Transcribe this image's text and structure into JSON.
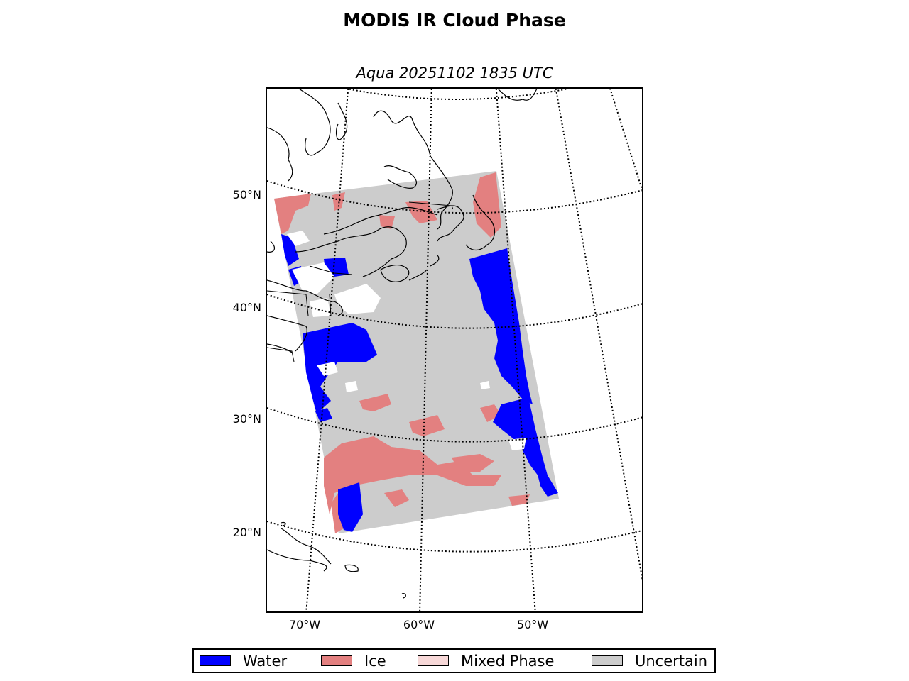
{
  "title": "MODIS IR Cloud Phase",
  "subtitle": "Aqua 20251102 1835 UTC",
  "lat_labels": [
    "50°N",
    "40°N",
    "30°N",
    "20°N"
  ],
  "lon_labels": [
    "70°W",
    "60°W",
    "50°W"
  ],
  "legend": [
    {
      "label": "Water",
      "color": "#0000ff"
    },
    {
      "label": "Ice",
      "color": "#e38080"
    },
    {
      "label": "Mixed Phase",
      "color": "#f7d8d8"
    },
    {
      "label": "Uncertain",
      "color": "#cccccc"
    }
  ]
}
